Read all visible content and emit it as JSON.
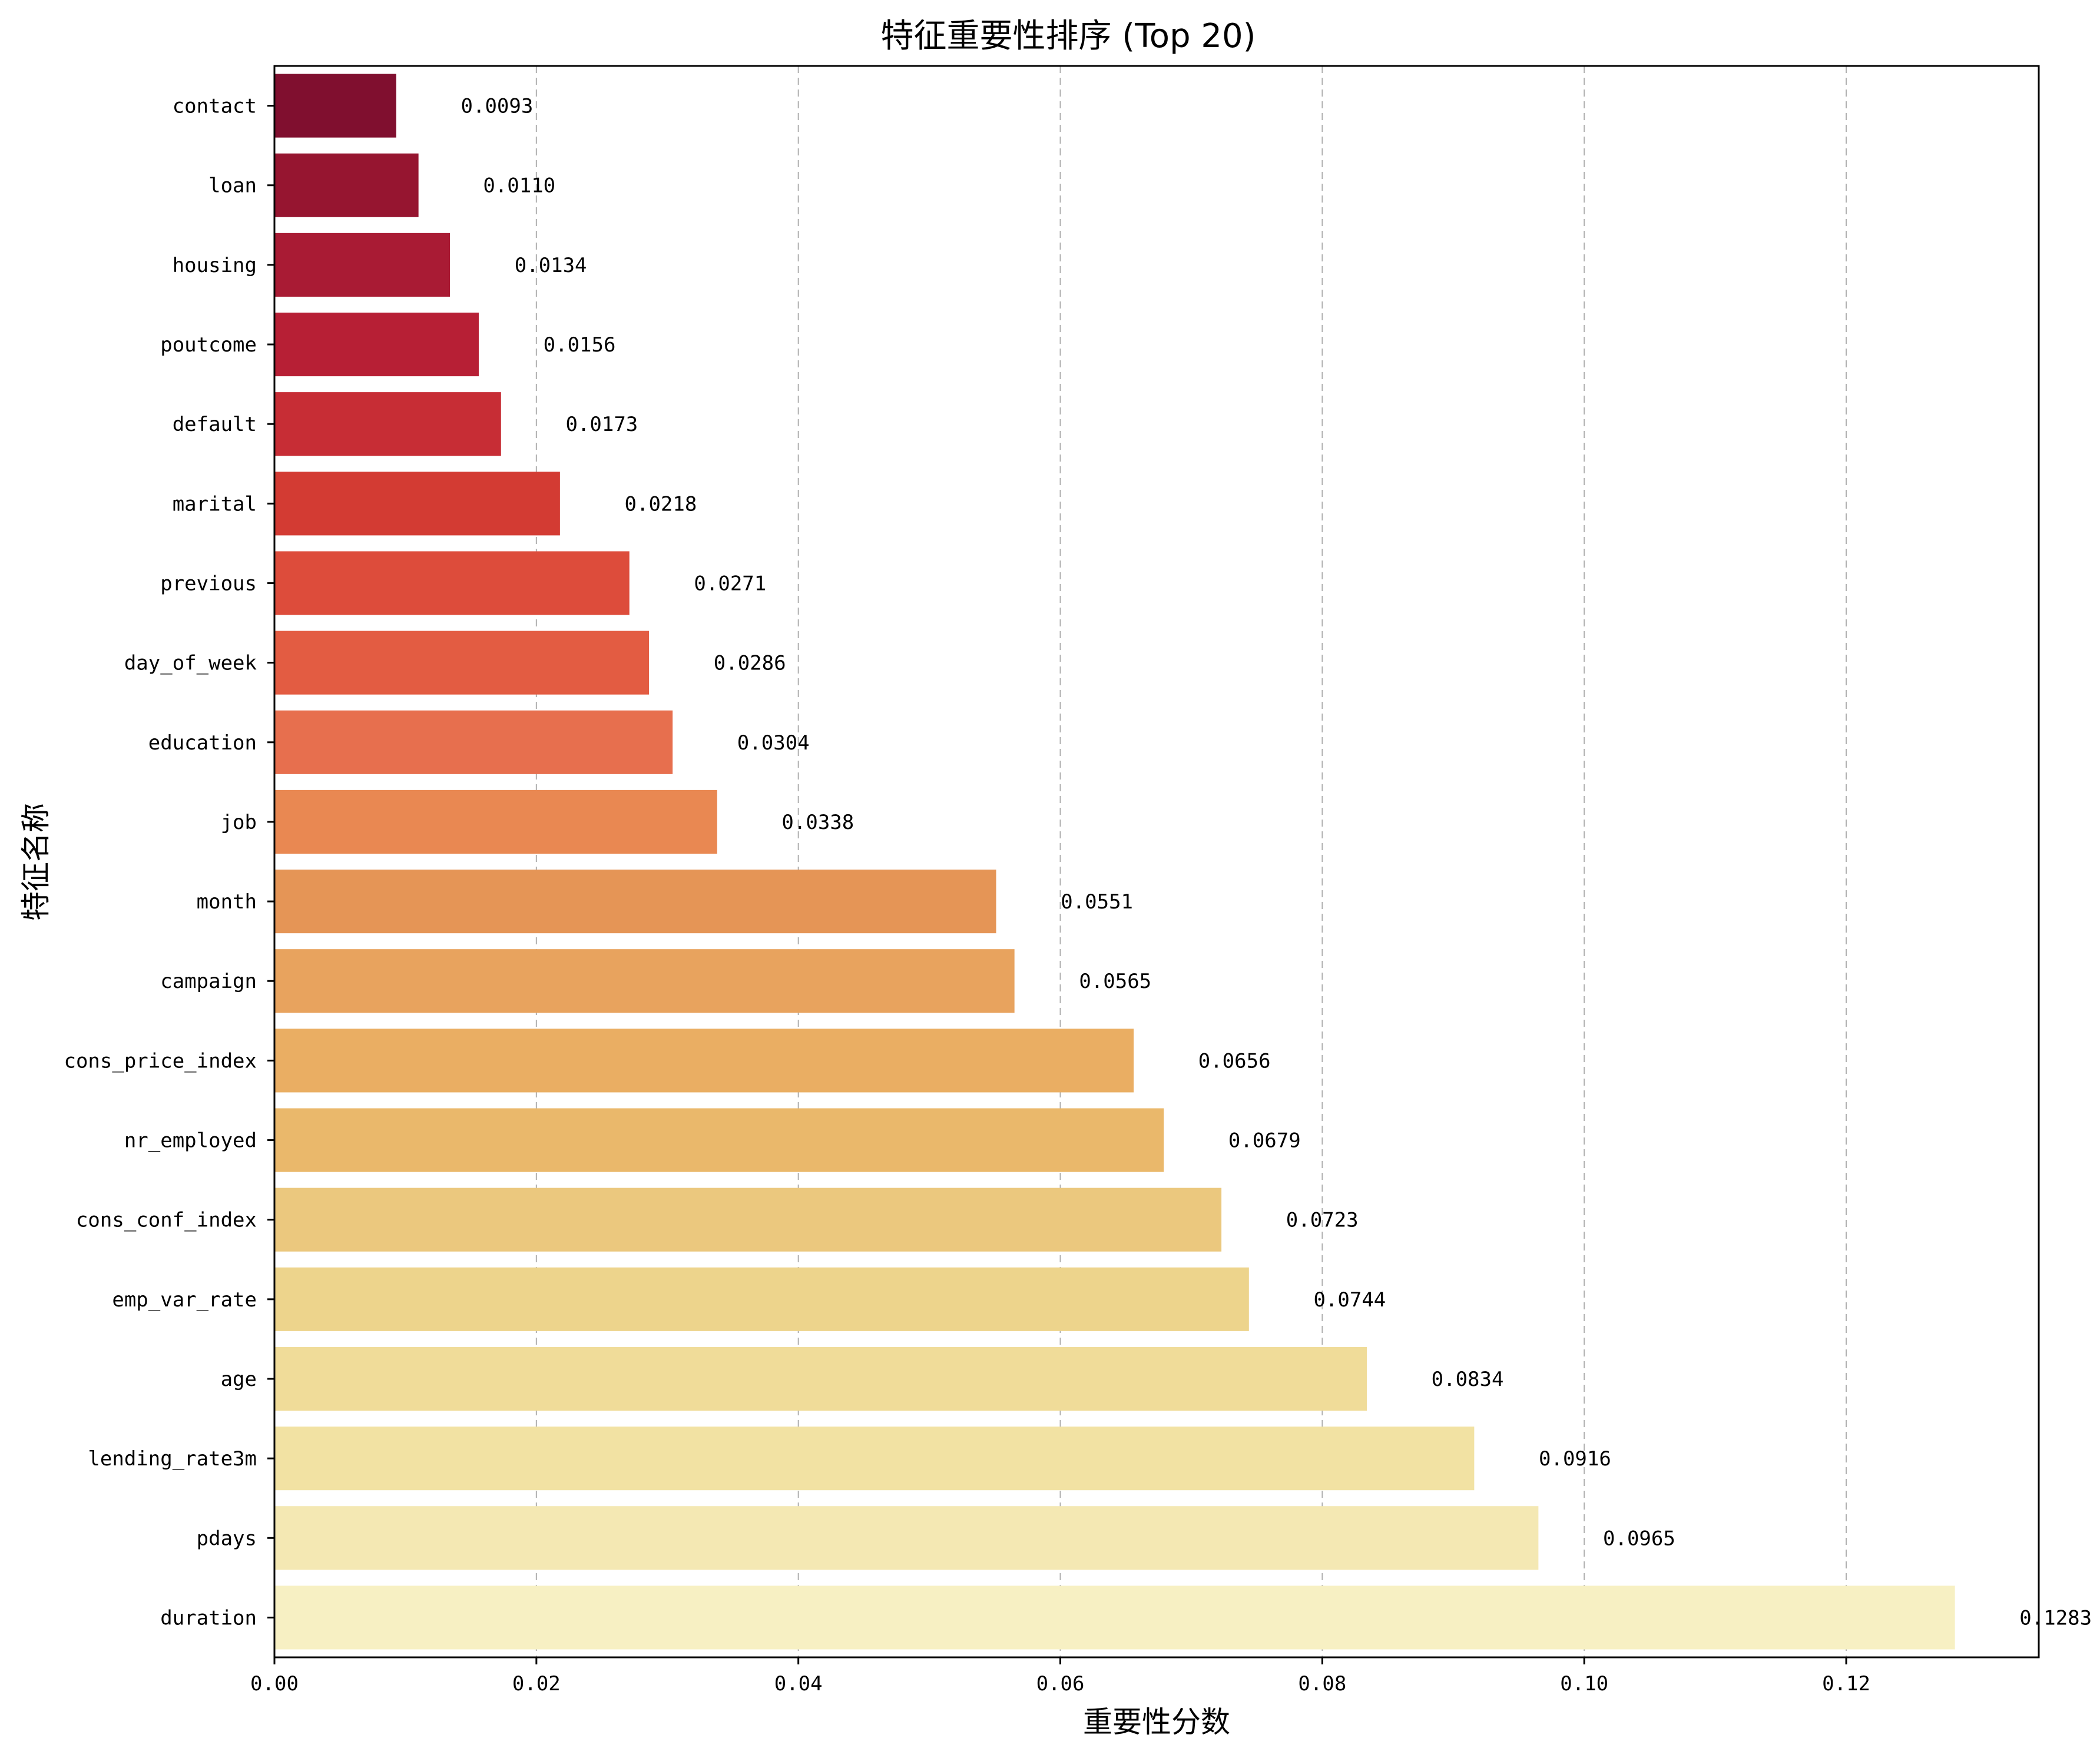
{
  "chart_data": {
    "type": "bar",
    "orientation": "horizontal",
    "title": "特征重要性排序 (Top 20)",
    "xlabel": "重要性分数",
    "ylabel": "特征名称",
    "xlim": [
      0,
      0.1347
    ],
    "xticks": [
      0.0,
      0.02,
      0.04,
      0.06,
      0.08,
      0.1,
      0.12
    ],
    "xtick_labels": [
      "0.00",
      "0.02",
      "0.04",
      "0.06",
      "0.08",
      "0.10",
      "0.12"
    ],
    "grid": "x-dashed",
    "categories": [
      "contact",
      "loan",
      "housing",
      "poutcome",
      "default",
      "marital",
      "previous",
      "day_of_week",
      "education",
      "job",
      "month",
      "campaign",
      "cons_price_index",
      "nr_employed",
      "cons_conf_index",
      "emp_var_rate",
      "age",
      "lending_rate3m",
      "pdays",
      "duration"
    ],
    "values": [
      0.0093,
      0.011,
      0.0134,
      0.0156,
      0.0173,
      0.0218,
      0.0271,
      0.0286,
      0.0304,
      0.0338,
      0.0551,
      0.0565,
      0.0656,
      0.0679,
      0.0723,
      0.0744,
      0.0834,
      0.0916,
      0.0965,
      0.1283
    ],
    "value_labels": [
      "0.0093",
      "0.0110",
      "0.0134",
      "0.0156",
      "0.0173",
      "0.0218",
      "0.0271",
      "0.0286",
      "0.0304",
      "0.0338",
      "0.0551",
      "0.0565",
      "0.0656",
      "0.0679",
      "0.0723",
      "0.0744",
      "0.0834",
      "0.0916",
      "0.0965",
      "0.1283"
    ],
    "colors": [
      "#800F2F",
      "#961530",
      "#A91B34",
      "#B71F35",
      "#C72D35",
      "#D33B33",
      "#DD4C3B",
      "#E35C42",
      "#E76F4E",
      "#E98852",
      "#E59556",
      "#E8A35E",
      "#EAAE63",
      "#EAB86B",
      "#EBC87E",
      "#EDD48C",
      "#F0DC99",
      "#F2E2A3",
      "#F4E8B3",
      "#F7F0C3"
    ]
  }
}
